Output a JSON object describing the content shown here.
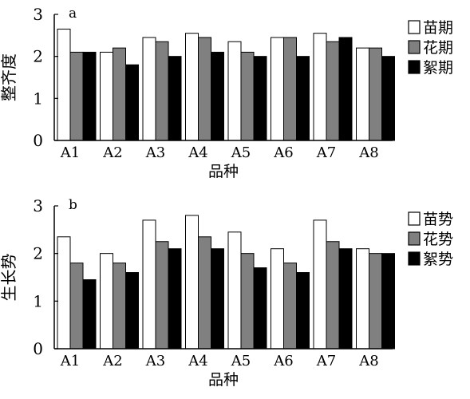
{
  "chart_data": [
    {
      "type": "bar",
      "panel_label": "a",
      "title": "",
      "xlabel": "品种",
      "ylabel": "整齐度",
      "categories": [
        "A1",
        "A2",
        "A3",
        "A4",
        "A5",
        "A6",
        "A7",
        "A8"
      ],
      "ylim": [
        0,
        3
      ],
      "yticks": [
        0,
        1,
        2,
        3
      ],
      "grid": false,
      "legend_position": "right",
      "series": [
        {
          "name": "苗期",
          "color": "#ffffff",
          "values": [
            2.65,
            2.1,
            2.45,
            2.55,
            2.35,
            2.45,
            2.55,
            2.2
          ]
        },
        {
          "name": "花期",
          "color": "#808080",
          "values": [
            2.1,
            2.2,
            2.35,
            2.45,
            2.1,
            2.45,
            2.35,
            2.2
          ]
        },
        {
          "name": "絮期",
          "color": "#000000",
          "values": [
            2.1,
            1.8,
            2.0,
            2.1,
            2.0,
            2.0,
            2.45,
            2.0
          ]
        }
      ]
    },
    {
      "type": "bar",
      "panel_label": "b",
      "title": "",
      "xlabel": "品种",
      "ylabel": "生长势",
      "categories": [
        "A1",
        "A2",
        "A3",
        "A4",
        "A5",
        "A6",
        "A7",
        "A8"
      ],
      "ylim": [
        0,
        3
      ],
      "yticks": [
        0,
        1,
        2,
        3
      ],
      "grid": false,
      "legend_position": "right",
      "series": [
        {
          "name": "苗势",
          "color": "#ffffff",
          "values": [
            2.35,
            2.0,
            2.7,
            2.8,
            2.45,
            2.1,
            2.7,
            2.1
          ]
        },
        {
          "name": "花势",
          "color": "#808080",
          "values": [
            1.8,
            1.8,
            2.25,
            2.35,
            2.0,
            1.8,
            2.25,
            2.0
          ]
        },
        {
          "name": "絮势",
          "color": "#000000",
          "values": [
            1.45,
            1.6,
            2.1,
            2.1,
            1.7,
            1.6,
            2.1,
            2.0
          ]
        }
      ]
    }
  ]
}
